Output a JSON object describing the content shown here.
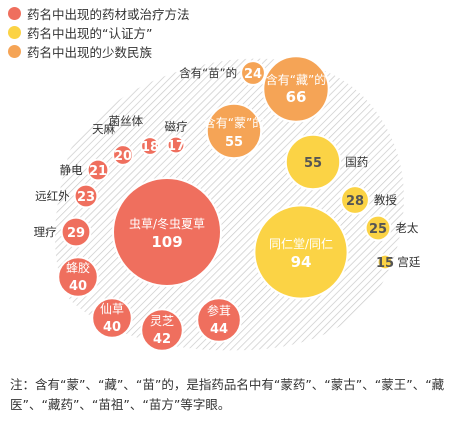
{
  "chart_data": {
    "type": "bubble",
    "legend": [
      {
        "label": "药名中出现的药材或治疗方法",
        "color": "#ef6f5e"
      },
      {
        "label": "药名中出现的“认证方”",
        "color": "#fbd345"
      },
      {
        "label": "药名中出现的少数民族",
        "color": "#f5a456"
      }
    ],
    "bubbles": [
      {
        "label": "虫草/冬虫夏草",
        "value": 109,
        "series": 0
      },
      {
        "label": "灵芝",
        "value": 42,
        "series": 0
      },
      {
        "label": "参茸",
        "value": 44,
        "series": 0
      },
      {
        "label": "仙草",
        "value": 40,
        "series": 0
      },
      {
        "label": "蜂胶",
        "value": 40,
        "series": 0
      },
      {
        "label": "理疗",
        "value": 29,
        "series": 0
      },
      {
        "label": "远红外",
        "value": 23,
        "series": 0
      },
      {
        "label": "静电",
        "value": 21,
        "series": 0
      },
      {
        "label": "天麻",
        "value": 20,
        "series": 0
      },
      {
        "label": "菌丝体",
        "value": 18,
        "series": 0
      },
      {
        "label": "磁疗",
        "value": 17,
        "series": 0
      },
      {
        "label": "同仁堂/同仁",
        "value": 94,
        "series": 1
      },
      {
        "label": "国药",
        "value": 55,
        "series": 1
      },
      {
        "label": "教授",
        "value": 28,
        "series": 1
      },
      {
        "label": "老太",
        "value": 25,
        "series": 1
      },
      {
        "label": "宫廷",
        "value": 15,
        "series": 1
      },
      {
        "label": "含有“蒙”的",
        "value": 55,
        "series": 2
      },
      {
        "label": "含有“藏”的",
        "value": 66,
        "series": 2
      },
      {
        "label": "含有“苗”的",
        "value": 24,
        "series": 2
      }
    ]
  },
  "note": "注：含有“蒙”、“藏”、“苗”的，是指药品名中有“蒙药”、“蒙古”、“蒙王”、“藏医”、“藏药”、“苗祖”、“苗方”等字眼。"
}
